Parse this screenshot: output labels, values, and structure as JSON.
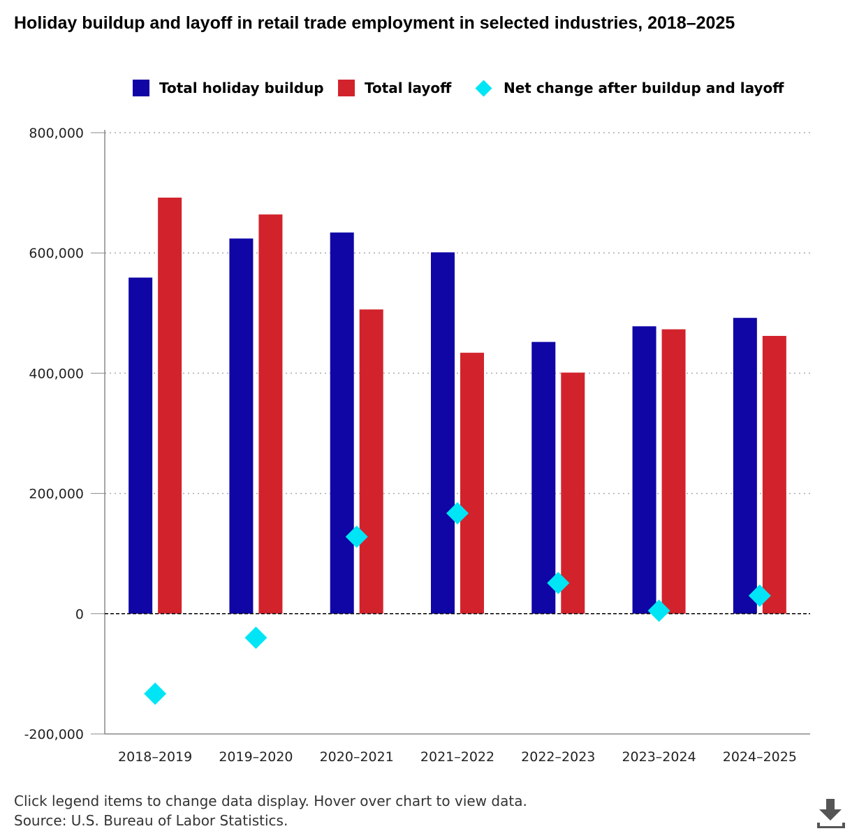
{
  "title": "Holiday buildup and layoff in retail trade employment in selected industries, 2018–2025",
  "legend": [
    {
      "label": "Total holiday buildup",
      "color": "#1005a5"
    },
    {
      "label": "Total layoff",
      "color": "#d2232c"
    },
    {
      "label": "Net change after buildup and layoff",
      "color": "#00e5f5"
    }
  ],
  "chart_data": {
    "type": "bar",
    "title": "Holiday buildup and layoff in retail trade employment in selected industries, 2018–2025",
    "categories": [
      "2018–2019",
      "2019–2020",
      "2020–2021",
      "2021–2022",
      "2022–2023",
      "2023–2024",
      "2024–2025"
    ],
    "series": [
      {
        "name": "Total holiday buildup",
        "type": "bar",
        "values": [
          559000,
          624000,
          634000,
          601000,
          452000,
          478000,
          492000
        ]
      },
      {
        "name": "Total layoff",
        "type": "bar",
        "values": [
          692000,
          664000,
          506000,
          434000,
          401000,
          473000,
          462000
        ]
      },
      {
        "name": "Net change after buildup and layoff",
        "type": "scatter",
        "values": [
          -133000,
          -40000,
          128000,
          167000,
          51000,
          5000,
          30000
        ]
      }
    ],
    "ylim": [
      -200000,
      800000
    ],
    "yticks": [
      -200000,
      0,
      200000,
      400000,
      600000,
      800000
    ],
    "ytick_labels": [
      "-200,000",
      "0",
      "200,000",
      "400,000",
      "600,000",
      "800,000"
    ],
    "grid": true,
    "legend_position": "top"
  },
  "notes": {
    "line1": "Click legend items to change data display. Hover over chart to view data.",
    "line2": "Source: U.S. Bureau of Labor Statistics."
  },
  "icons": {
    "download": "download-icon"
  }
}
